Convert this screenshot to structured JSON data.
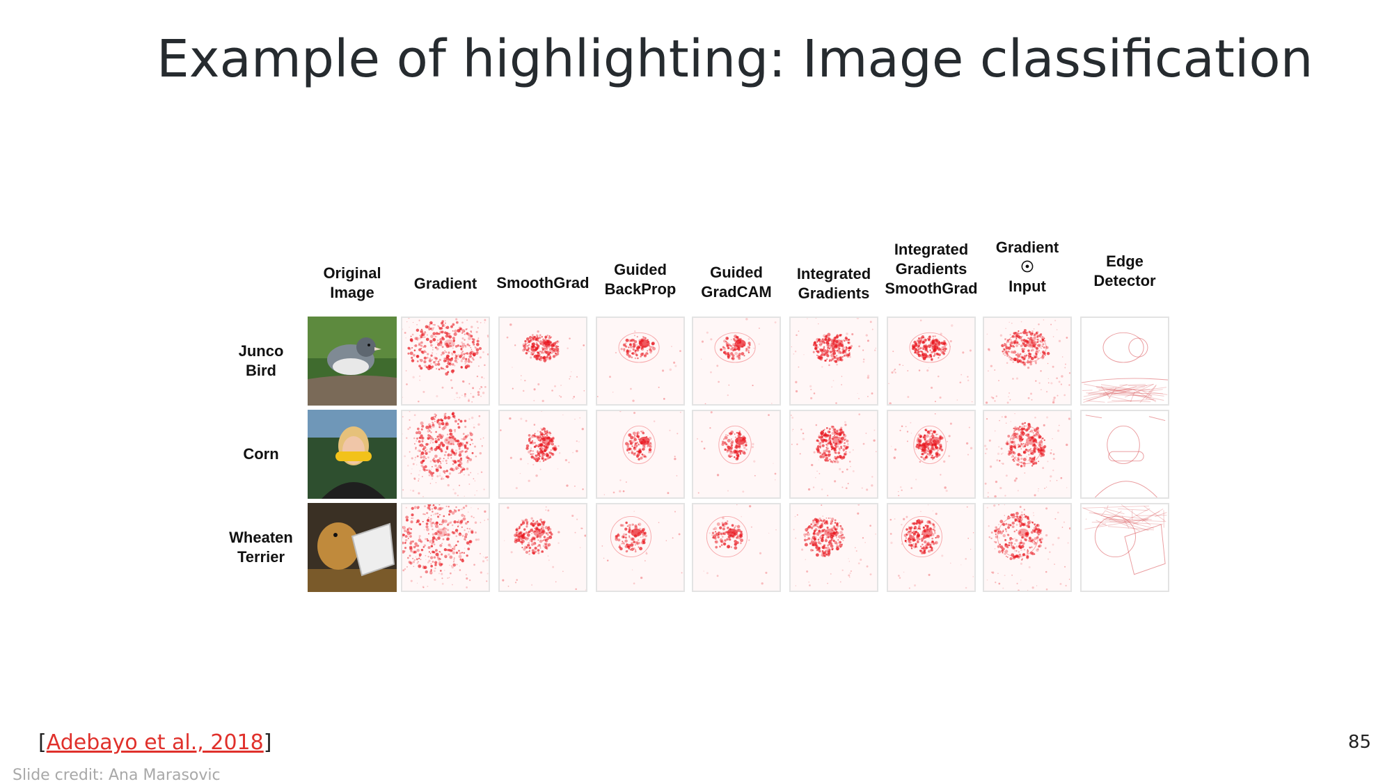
{
  "slide": {
    "title": "Example of highlighting: Image classification",
    "page_number": "85",
    "citation_open": "[",
    "citation_link": "Adebayo et al., 2018",
    "citation_close": "]",
    "credit": "Slide credit: Ana Marasovic"
  },
  "figure": {
    "columns": [
      {
        "lines": [
          "Original",
          "Image"
        ]
      },
      {
        "lines": [
          "Gradient"
        ]
      },
      {
        "lines": [
          "SmoothGrad"
        ]
      },
      {
        "lines": [
          "Guided",
          "BackProp"
        ]
      },
      {
        "lines": [
          "Guided",
          "GradCAM"
        ]
      },
      {
        "lines": [
          "Integrated",
          "Gradients"
        ]
      },
      {
        "lines": [
          "Integrated",
          "Gradients",
          "SmoothGrad"
        ]
      },
      {
        "lines": [
          "Gradient",
          "☉",
          "Input"
        ]
      },
      {
        "lines": [
          "Edge",
          "Detector"
        ]
      }
    ],
    "rows": [
      {
        "lines": [
          "Junco",
          "Bird"
        ],
        "subject": "bird"
      },
      {
        "lines": [
          "Corn"
        ],
        "subject": "person"
      },
      {
        "lines": [
          "Wheaten",
          "Terrier"
        ],
        "subject": "dog"
      }
    ],
    "heatmap_color": "#e8141c"
  }
}
